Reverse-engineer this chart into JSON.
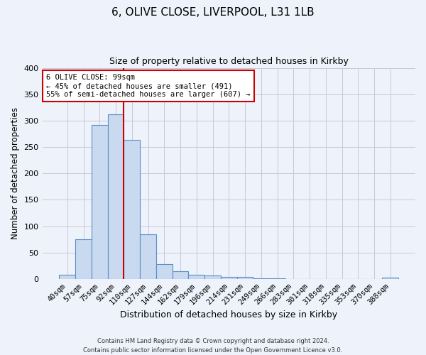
{
  "title1": "6, OLIVE CLOSE, LIVERPOOL, L31 1LB",
  "title2": "Size of property relative to detached houses in Kirkby",
  "xlabel": "Distribution of detached houses by size in Kirkby",
  "ylabel": "Number of detached properties",
  "bar_labels": [
    "40sqm",
    "57sqm",
    "75sqm",
    "92sqm",
    "110sqm",
    "127sqm",
    "144sqm",
    "162sqm",
    "179sqm",
    "196sqm",
    "214sqm",
    "231sqm",
    "249sqm",
    "266sqm",
    "283sqm",
    "301sqm",
    "318sqm",
    "335sqm",
    "353sqm",
    "370sqm",
    "388sqm"
  ],
  "bar_values": [
    8,
    75,
    292,
    312,
    263,
    85,
    28,
    15,
    8,
    7,
    4,
    4,
    2,
    2,
    0,
    0,
    0,
    0,
    0,
    0,
    3
  ],
  "bar_color": "#c9d9f0",
  "bar_edge_color": "#5b8ec7",
  "vline_x": 3.5,
  "vline_color": "#cc0000",
  "annotation_title": "6 OLIVE CLOSE: 99sqm",
  "annotation_line1": "← 45% of detached houses are smaller (491)",
  "annotation_line2": "55% of semi-detached houses are larger (607) →",
  "annotation_box_color": "#ffffff",
  "annotation_box_edge": "#cc0000",
  "ylim": [
    0,
    400
  ],
  "yticks": [
    0,
    50,
    100,
    150,
    200,
    250,
    300,
    350,
    400
  ],
  "grid_color": "#c8c8d8",
  "bg_color": "#eef2fa",
  "footnote1": "Contains HM Land Registry data © Crown copyright and database right 2024.",
  "footnote2": "Contains public sector information licensed under the Open Government Licence v3.0."
}
